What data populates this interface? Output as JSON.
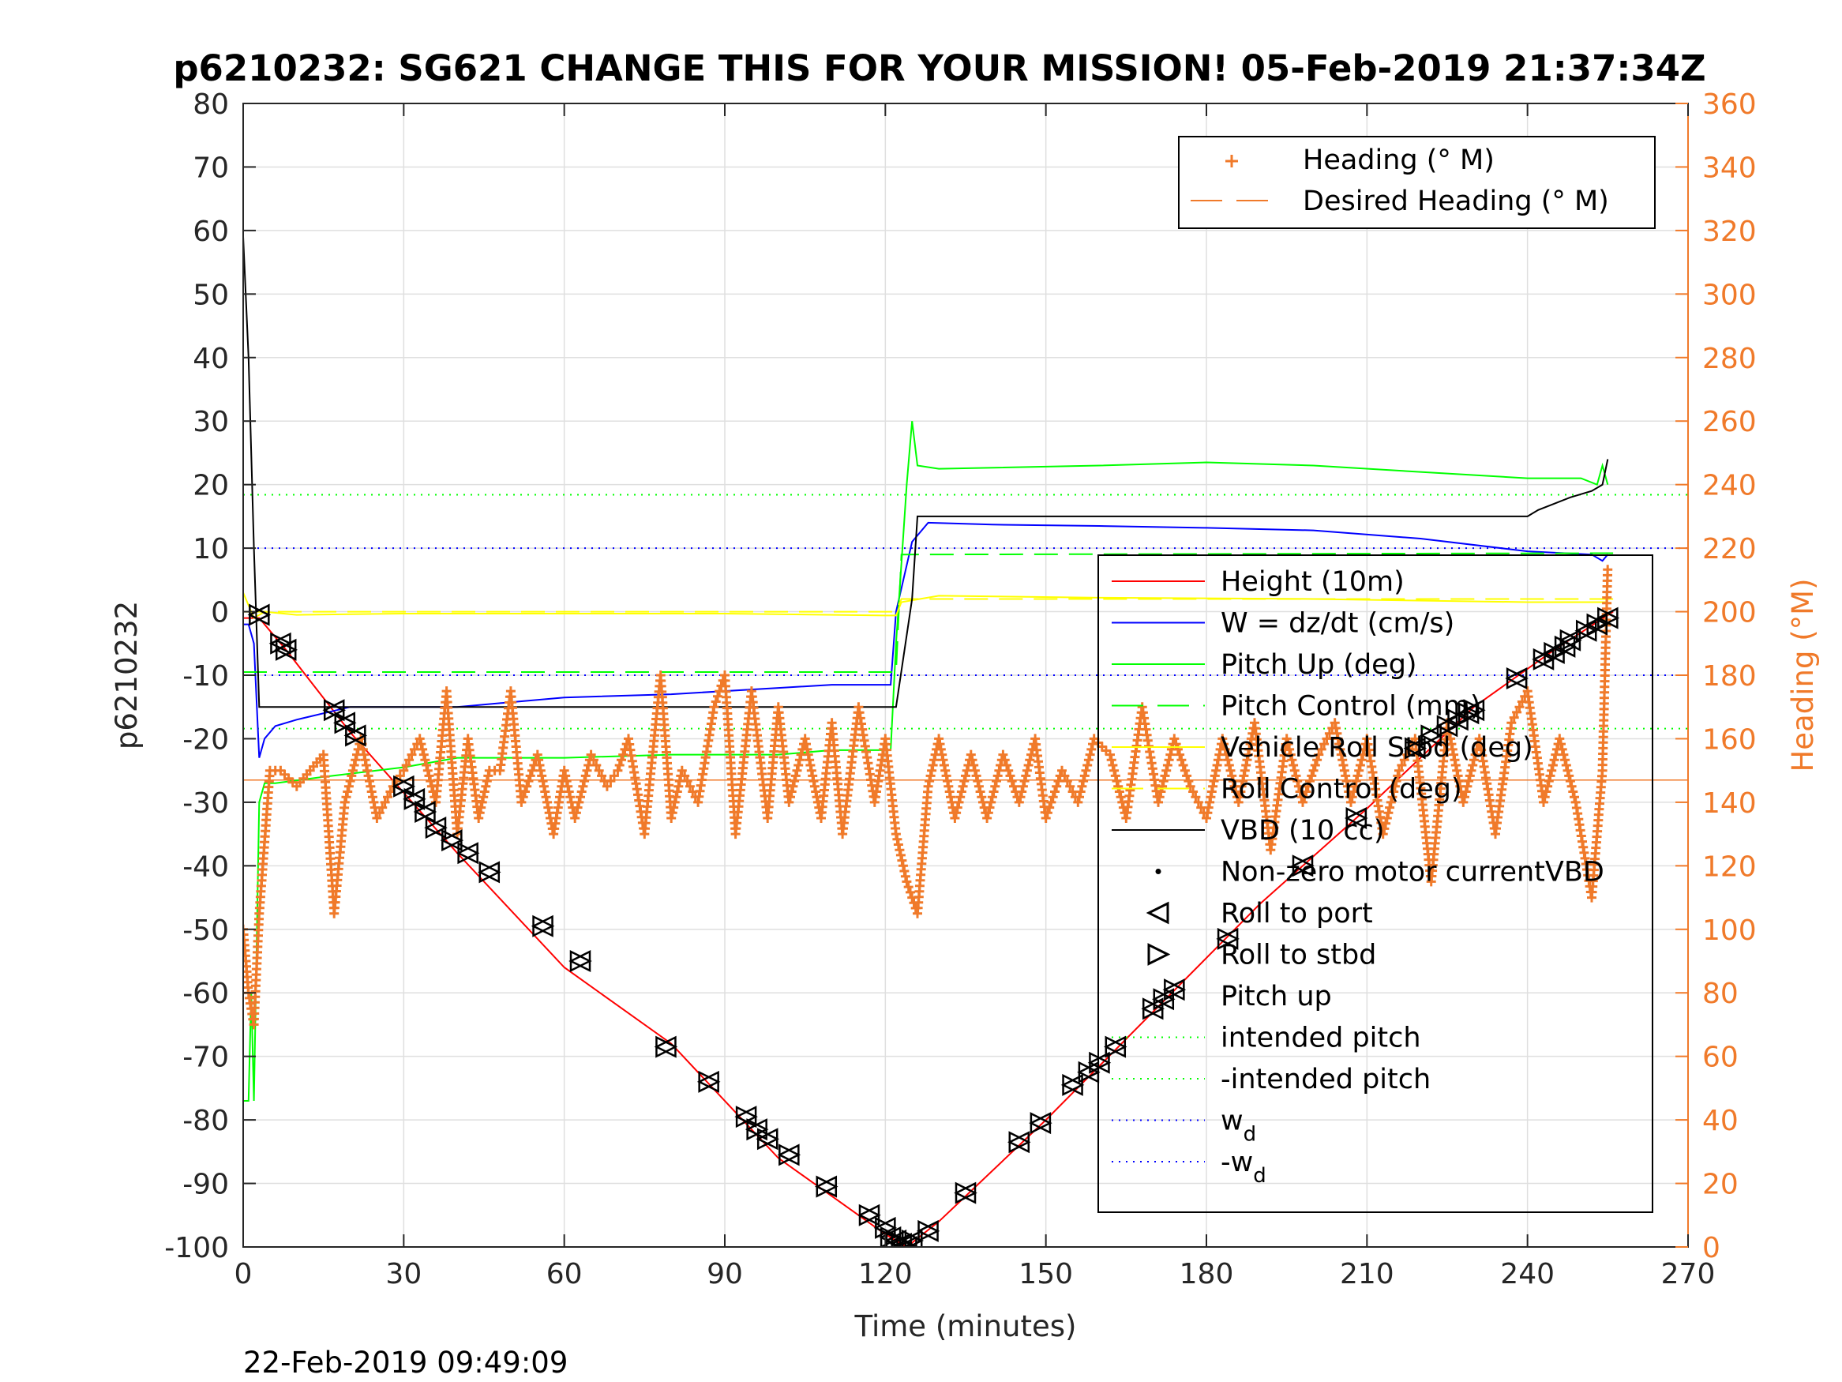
{
  "chart_data": {
    "type": "line",
    "title": "p6210232: SG621 CHANGE THIS FOR YOUR MISSION! 05-Feb-2019 21:37:34Z",
    "xlabel": "Time (minutes)",
    "ylabel": "p6210232",
    "ylabel_right": "Heading (°M)",
    "footer_timestamp": "22-Feb-2019 09:49:09",
    "xlim": [
      0,
      270
    ],
    "ylim": [
      -100,
      80
    ],
    "ylim_right": [
      0,
      360
    ],
    "x_ticks": [
      "0",
      "30",
      "60",
      "90",
      "120",
      "150",
      "180",
      "210",
      "240",
      "270"
    ],
    "y_ticks": [
      "80",
      "70",
      "60",
      "50",
      "40",
      "30",
      "20",
      "10",
      "0",
      "-10",
      "-20",
      "-30",
      "-40",
      "-50",
      "-60",
      "-70",
      "-80",
      "-90",
      "-100"
    ],
    "y_ticks_right": [
      "360",
      "340",
      "320",
      "300",
      "280",
      "260",
      "240",
      "220",
      "200",
      "180",
      "160",
      "140",
      "120",
      "100",
      "80",
      "60",
      "40",
      "20",
      "0"
    ],
    "grid": true,
    "legend_top": {
      "placement": "top-right",
      "entries": [
        {
          "label": "Heading (° M)",
          "color": "#f07a2a",
          "style": "plus-marker"
        },
        {
          "label": "Desired Heading (° M)",
          "color": "#f07a2a",
          "style": "dashed"
        }
      ]
    },
    "legend_main": {
      "placement": "right",
      "entries": [
        {
          "label": "Height (10m)",
          "color": "#ff0000",
          "style": "solid"
        },
        {
          "label": "W = dz/dt (cm/s)",
          "color": "#0000ff",
          "style": "solid"
        },
        {
          "label": "Pitch Up (deg)",
          "color": "#00ff00",
          "style": "solid"
        },
        {
          "label": "Pitch Control (mm)",
          "color": "#00ff00",
          "style": "dashed"
        },
        {
          "label": "Vehicle Roll Stbd (deg)",
          "color": "#ffff00",
          "style": "solid"
        },
        {
          "label": "Roll Control (deg)",
          "color": "#ffff00",
          "style": "dashed"
        },
        {
          "label": "VBD (10 cc)",
          "color": "#000000",
          "style": "solid"
        },
        {
          "label": "Non-zero motor currentVBD",
          "color": "#000000",
          "style": "dot"
        },
        {
          "label": "Roll to port",
          "color": "#000000",
          "style": "triangle-left"
        },
        {
          "label": "Roll to stbd",
          "color": "#000000",
          "style": "triangle-right"
        },
        {
          "label": "Pitch up",
          "color": "#000000",
          "style": "none"
        },
        {
          "label": "intended pitch",
          "color": "#00ff00",
          "style": "dotted"
        },
        {
          "label": "-intended pitch",
          "color": "#00ff00",
          "style": "dotted"
        },
        {
          "label": "w",
          "subscript": "d",
          "color": "#0000ff",
          "style": "dotted"
        },
        {
          "label": "-w",
          "subscript": "d",
          "color": "#0000ff",
          "style": "dotted"
        }
      ]
    },
    "reference_lines": {
      "intended_pitch": 18.4,
      "neg_intended_pitch": -18.4,
      "w_d": 10,
      "neg_w_d": -10,
      "desired_heading": 147
    },
    "series": [
      {
        "name": "Height (10m)",
        "axis": "left",
        "color": "#ff0000",
        "x": [
          0,
          3,
          8,
          20,
          40,
          60,
          80,
          100,
          120,
          124,
          130,
          150,
          170,
          190,
          210,
          230,
          245,
          256
        ],
        "y": [
          -1,
          -1,
          -6,
          -19,
          -38,
          -56,
          -68,
          -86,
          -98,
          -100,
          -96,
          -80,
          -63,
          -46,
          -31,
          -15,
          -6,
          0
        ]
      },
      {
        "name": "W = dz/dt (cm/s)",
        "axis": "left",
        "color": "#0000ff",
        "x": [
          0,
          1,
          2,
          3,
          4,
          6,
          10,
          20,
          40,
          60,
          80,
          100,
          110,
          121,
          122,
          125,
          128,
          140,
          160,
          180,
          200,
          220,
          240,
          252,
          254,
          255
        ],
        "y": [
          -2,
          -2,
          -5,
          -23,
          -20,
          -18,
          -17,
          -15,
          -15,
          -13.5,
          -13,
          -12,
          -11.5,
          -11.5,
          0,
          11,
          14,
          13.7,
          13.5,
          13.2,
          12.8,
          11.5,
          9.5,
          9,
          8,
          9
        ]
      },
      {
        "name": "Pitch Up (deg)",
        "axis": "left",
        "color": "#00ff00",
        "x": [
          0,
          1,
          1.5,
          2,
          3,
          4,
          6,
          15,
          30,
          40,
          60,
          80,
          100,
          110,
          121,
          122,
          124,
          125,
          126,
          130,
          160,
          180,
          200,
          220,
          240,
          250,
          253,
          254,
          255
        ],
        "y": [
          -77,
          -77,
          -60,
          -77,
          -30,
          -27,
          -27,
          -26,
          -24.5,
          -23,
          -23,
          -22.5,
          -22.5,
          -21.8,
          -21.8,
          -5,
          20,
          30,
          23,
          22.5,
          23,
          23.5,
          23,
          22,
          21,
          21,
          20,
          23,
          20
        ]
      },
      {
        "name": "Pitch Control (mm)",
        "axis": "left",
        "color": "#00ff00",
        "x": [
          0,
          122,
          123,
          256
        ],
        "y": [
          -9.5,
          -9.5,
          9,
          9.2
        ]
      },
      {
        "name": "Vehicle Roll Stbd (deg)",
        "axis": "left",
        "color": "#ffff00",
        "x": [
          0,
          2,
          4,
          10,
          30,
          60,
          90,
          120,
          122,
          123,
          130,
          160,
          200,
          240,
          255
        ],
        "y": [
          3,
          -1,
          0,
          -0.5,
          -0.3,
          -0.3,
          -0.3,
          -0.6,
          -0.6,
          1.5,
          2.5,
          2.2,
          2,
          1.5,
          1.5
        ]
      },
      {
        "name": "Roll Control (deg)",
        "axis": "left",
        "color": "#ffff00",
        "x": [
          0,
          122,
          123,
          256
        ],
        "y": [
          0,
          0,
          2,
          2
        ]
      },
      {
        "name": "VBD (10 cc)",
        "axis": "left",
        "color": "#000000",
        "x": [
          0,
          1,
          2,
          3,
          120,
          122,
          125,
          126,
          240,
          242,
          245,
          248,
          252,
          254,
          255
        ],
        "y": [
          59,
          40,
          10,
          -15,
          -15,
          -15,
          2,
          15,
          15,
          16,
          17,
          18,
          19,
          20,
          24
        ]
      },
      {
        "name": "Heading (° M)",
        "axis": "right",
        "color": "#f07a2a",
        "x": [
          0,
          1,
          2,
          3,
          5,
          7,
          10,
          15,
          17,
          19,
          22,
          25,
          28,
          30,
          33,
          36,
          38,
          40,
          42,
          44,
          46,
          48,
          50,
          52,
          55,
          58,
          60,
          62,
          65,
          68,
          70,
          72,
          75,
          78,
          80,
          82,
          85,
          88,
          90,
          92,
          95,
          98,
          100,
          102,
          105,
          108,
          110,
          112,
          115,
          118,
          120,
          122,
          124,
          126,
          128,
          130,
          133,
          136,
          139,
          142,
          145,
          148,
          150,
          153,
          156,
          159,
          162,
          165,
          168,
          171,
          174,
          177,
          180,
          183,
          186,
          189,
          192,
          195,
          198,
          201,
          204,
          207,
          210,
          213,
          216,
          219,
          222,
          225,
          228,
          231,
          234,
          237,
          240,
          243,
          246,
          249,
          252,
          254,
          255
        ],
        "y": [
          100,
          80,
          70,
          105,
          150,
          150,
          145,
          155,
          105,
          140,
          160,
          135,
          145,
          150,
          160,
          140,
          175,
          130,
          160,
          135,
          150,
          150,
          175,
          140,
          155,
          130,
          150,
          135,
          155,
          145,
          150,
          160,
          130,
          180,
          135,
          150,
          140,
          170,
          180,
          130,
          175,
          135,
          170,
          140,
          160,
          135,
          165,
          130,
          170,
          140,
          160,
          130,
          115,
          105,
          145,
          160,
          135,
          155,
          135,
          155,
          140,
          160,
          135,
          150,
          140,
          160,
          155,
          135,
          170,
          140,
          160,
          145,
          135,
          160,
          140,
          165,
          125,
          160,
          140,
          155,
          165,
          140,
          160,
          130,
          150,
          160,
          115,
          165,
          140,
          160,
          130,
          165,
          175,
          140,
          160,
          140,
          110,
          150,
          215
        ]
      }
    ],
    "markers": {
      "roll_events_x": [
        3,
        7,
        8,
        17,
        19,
        21,
        30,
        32,
        34,
        36,
        39,
        42,
        46,
        56,
        63,
        79,
        87,
        94,
        96,
        98,
        102,
        109,
        117,
        120,
        121,
        122,
        123,
        124,
        125,
        128,
        135,
        145,
        149,
        155,
        158,
        160,
        163,
        170,
        172,
        174,
        184,
        198,
        208,
        219,
        222,
        225,
        227,
        229,
        230,
        238,
        243,
        245,
        247,
        248,
        251,
        253,
        255
      ],
      "roll_events_y": [
        -0.5,
        -5,
        -6,
        -15.5,
        -17.5,
        -19.5,
        -27.5,
        -29.5,
        -31.5,
        -34,
        -36,
        -38,
        -41,
        -49.5,
        -55,
        -68.5,
        -74,
        -79.5,
        -81.5,
        -83,
        -85.5,
        -90.5,
        -95,
        -97,
        -98.5,
        -99,
        -99.5,
        -100,
        -99,
        -97.5,
        -91.5,
        -83.5,
        -80.5,
        -74.5,
        -72.5,
        -71,
        -68.5,
        -62.5,
        -61,
        -59.5,
        -51.5,
        -40,
        -32.5,
        -21.5,
        -19.5,
        -18,
        -17,
        -16,
        -15.5,
        -10.5,
        -7.5,
        -6.5,
        -5.5,
        -4.5,
        -3,
        -2,
        -1
      ]
    }
  }
}
